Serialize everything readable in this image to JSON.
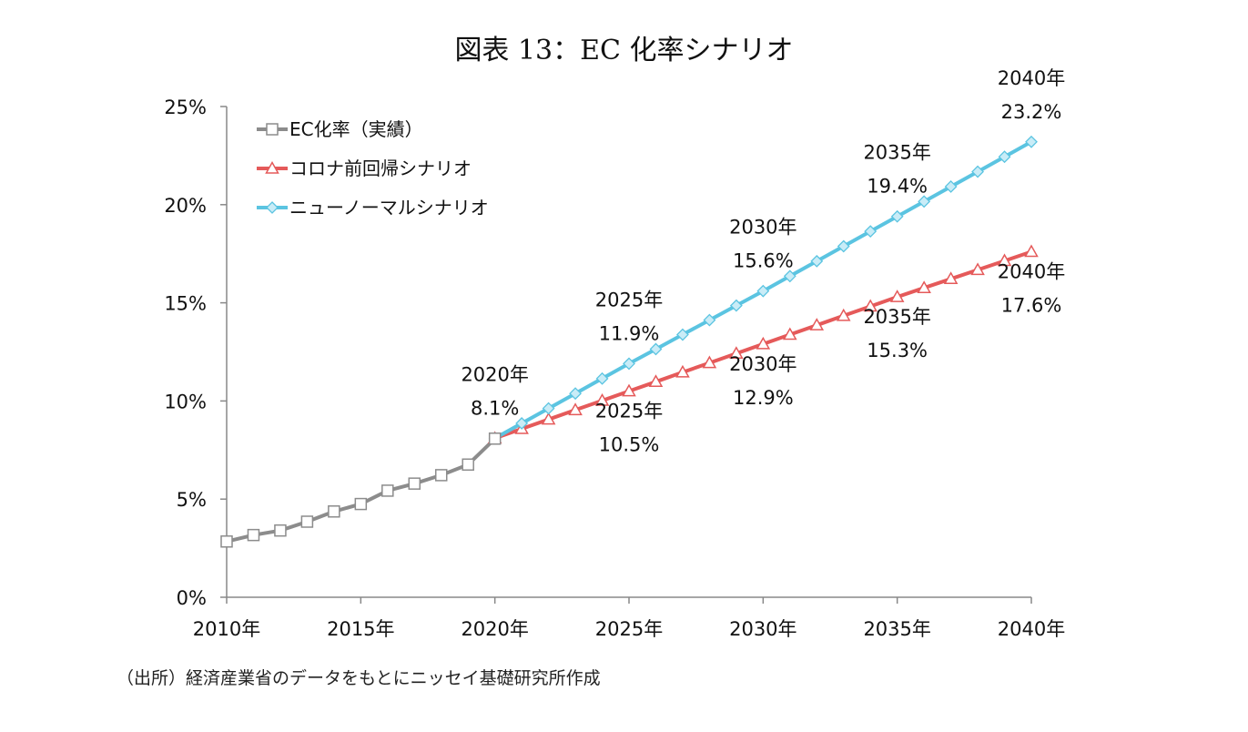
{
  "title": "図表 13：EC 化率シナリオ",
  "source": "（出所）経済産業省のデータをもとにニッセイ基礎研究所作成",
  "chart_data": {
    "type": "line",
    "title": "図表 13：EC 化率シナリオ",
    "xlabel": "",
    "ylabel": "",
    "xlim": [
      2010,
      2040
    ],
    "ylim": [
      0,
      25
    ],
    "x_ticks": [
      2010,
      2015,
      2020,
      2025,
      2030,
      2035,
      2040
    ],
    "x_tick_labels": [
      "2010年",
      "2015年",
      "2020年",
      "2025年",
      "2030年",
      "2035年",
      "2040年"
    ],
    "y_ticks": [
      0,
      5,
      10,
      15,
      20,
      25
    ],
    "y_tick_labels": [
      "0%",
      "5%",
      "10%",
      "15%",
      "20%",
      "25%"
    ],
    "legend_position": "top-left",
    "series": [
      {
        "name": "EC化率（実績）",
        "color": "#8c8c8c",
        "marker": "square",
        "x": [
          2010,
          2011,
          2012,
          2013,
          2014,
          2015,
          2016,
          2017,
          2018,
          2019,
          2020
        ],
        "values": [
          2.84,
          3.17,
          3.4,
          3.85,
          4.37,
          4.75,
          5.43,
          5.79,
          6.22,
          6.76,
          8.08
        ]
      },
      {
        "name": "コロナ前回帰シナリオ",
        "color": "#e55a5a",
        "marker": "triangle",
        "x": [
          2020,
          2021,
          2022,
          2023,
          2024,
          2025,
          2026,
          2027,
          2028,
          2029,
          2030,
          2031,
          2032,
          2033,
          2034,
          2035,
          2036,
          2037,
          2038,
          2039,
          2040
        ],
        "values": [
          8.1,
          8.58,
          9.06,
          9.54,
          10.02,
          10.5,
          10.98,
          11.46,
          11.94,
          12.42,
          12.9,
          13.38,
          13.86,
          14.34,
          14.82,
          15.3,
          15.76,
          16.22,
          16.68,
          17.14,
          17.6
        ]
      },
      {
        "name": "ニューノーマルシナリオ",
        "color": "#5bc4e1",
        "marker": "diamond",
        "x": [
          2020,
          2021,
          2022,
          2023,
          2024,
          2025,
          2026,
          2027,
          2028,
          2029,
          2030,
          2031,
          2032,
          2033,
          2034,
          2035,
          2036,
          2037,
          2038,
          2039,
          2040
        ],
        "values": [
          8.1,
          8.86,
          9.62,
          10.38,
          11.14,
          11.9,
          12.64,
          13.38,
          14.12,
          14.86,
          15.6,
          16.36,
          17.12,
          17.88,
          18.64,
          19.4,
          20.16,
          20.92,
          21.68,
          22.44,
          23.2
        ]
      }
    ],
    "annotations": [
      {
        "year_label": "2020年",
        "value_label": "8.1%",
        "x": 2020,
        "y": 8.1,
        "placement": "above"
      },
      {
        "year_label": "2025年",
        "value_label": "11.9%",
        "x": 2025,
        "y": 11.9,
        "placement": "above"
      },
      {
        "year_label": "2030年",
        "value_label": "15.6%",
        "x": 2030,
        "y": 15.6,
        "placement": "above"
      },
      {
        "year_label": "2035年",
        "value_label": "19.4%",
        "x": 2035,
        "y": 19.4,
        "placement": "above"
      },
      {
        "year_label": "2040年",
        "value_label": "23.2%",
        "x": 2040,
        "y": 23.2,
        "placement": "above"
      },
      {
        "year_label": "2025年",
        "value_label": "10.5%",
        "x": 2025,
        "y": 10.5,
        "placement": "below"
      },
      {
        "year_label": "2030年",
        "value_label": "12.9%",
        "x": 2030,
        "y": 12.9,
        "placement": "below"
      },
      {
        "year_label": "2035年",
        "value_label": "15.3%",
        "x": 2035,
        "y": 15.3,
        "placement": "below"
      },
      {
        "year_label": "2040年",
        "value_label": "17.6%",
        "x": 2040,
        "y": 17.6,
        "placement": "below"
      }
    ]
  }
}
